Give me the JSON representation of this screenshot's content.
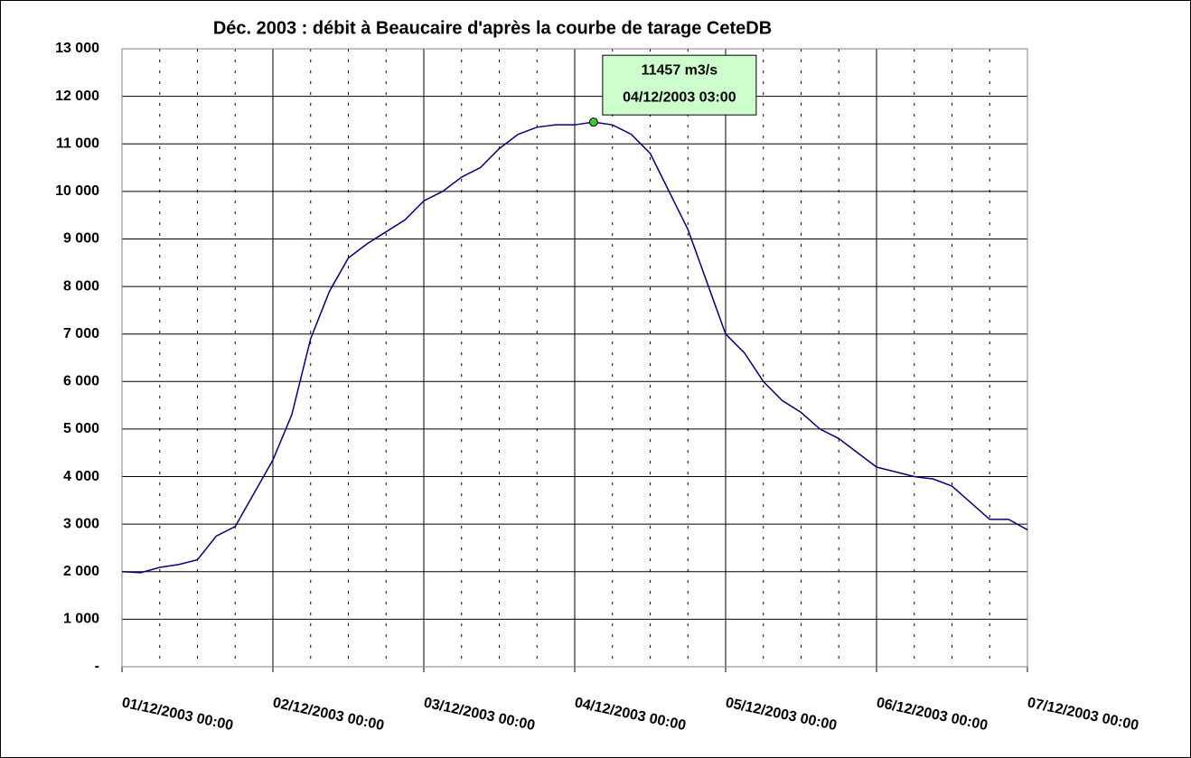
{
  "chart_data": {
    "type": "line",
    "title": "Déc. 2003 : débit à Beaucaire d'après la courbe de tarage CeteDB",
    "x": [
      "01/12/2003 00:00",
      "01/12/2003 03:00",
      "01/12/2003 06:00",
      "01/12/2003 09:00",
      "01/12/2003 12:00",
      "01/12/2003 15:00",
      "01/12/2003 18:00",
      "01/12/2003 21:00",
      "02/12/2003 00:00",
      "02/12/2003 03:00",
      "02/12/2003 06:00",
      "02/12/2003 09:00",
      "02/12/2003 12:00",
      "02/12/2003 15:00",
      "02/12/2003 18:00",
      "02/12/2003 21:00",
      "03/12/2003 00:00",
      "03/12/2003 03:00",
      "03/12/2003 06:00",
      "03/12/2003 09:00",
      "03/12/2003 12:00",
      "03/12/2003 15:00",
      "03/12/2003 18:00",
      "03/12/2003 21:00",
      "04/12/2003 00:00",
      "04/12/2003 03:00",
      "04/12/2003 06:00",
      "04/12/2003 09:00",
      "04/12/2003 12:00",
      "04/12/2003 15:00",
      "04/12/2003 18:00",
      "04/12/2003 21:00",
      "05/12/2003 00:00",
      "05/12/2003 03:00",
      "05/12/2003 06:00",
      "05/12/2003 09:00",
      "05/12/2003 12:00",
      "05/12/2003 15:00",
      "05/12/2003 18:00",
      "05/12/2003 21:00",
      "06/12/2003 00:00",
      "06/12/2003 03:00",
      "06/12/2003 06:00",
      "06/12/2003 09:00",
      "06/12/2003 12:00",
      "06/12/2003 15:00",
      "06/12/2003 18:00",
      "06/12/2003 21:00",
      "07/12/2003 00:00"
    ],
    "series": [
      {
        "name": "débit",
        "color": "#000080",
        "values": [
          2000,
          1980,
          2090,
          2150,
          2250,
          2750,
          2950,
          3650,
          4350,
          5300,
          6900,
          7900,
          8600,
          8900,
          9150,
          9400,
          9800,
          10000,
          10300,
          10500,
          10900,
          11200,
          11350,
          11400,
          11400,
          11457,
          11400,
          11200,
          10800,
          10000,
          9200,
          8100,
          7000,
          6600,
          6000,
          5600,
          5350,
          5000,
          4800,
          4500,
          4200,
          4100,
          4000,
          3950,
          3800,
          3450,
          3100,
          3100,
          2880
        ]
      }
    ],
    "xlim": [
      "01/12/2003 00:00",
      "07/12/2003 00:00"
    ],
    "xticks": [
      "01/12/2003 00:00",
      "02/12/2003 00:00",
      "03/12/2003 00:00",
      "04/12/2003 00:00",
      "05/12/2003 00:00",
      "06/12/2003 00:00",
      "07/12/2003 00:00"
    ],
    "ylim": [
      0,
      13000
    ],
    "yticks": [
      {
        "value": 0,
        "label": "-"
      },
      {
        "value": 1000,
        "label": "1 000"
      },
      {
        "value": 2000,
        "label": "2 000"
      },
      {
        "value": 3000,
        "label": "3 000"
      },
      {
        "value": 4000,
        "label": "4 000"
      },
      {
        "value": 5000,
        "label": "5 000"
      },
      {
        "value": 6000,
        "label": "6 000"
      },
      {
        "value": 7000,
        "label": "7 000"
      },
      {
        "value": 8000,
        "label": "8 000"
      },
      {
        "value": 9000,
        "label": "9 000"
      },
      {
        "value": 10000,
        "label": "10 000"
      },
      {
        "value": 11000,
        "label": "11 000"
      },
      {
        "value": 12000,
        "label": "12 000"
      },
      {
        "value": 13000,
        "label": "13 000"
      }
    ],
    "grid": true,
    "annotation": {
      "lines": [
        "11457 m3/s",
        "04/12/2003 03:00"
      ],
      "x": "04/12/2003 03:00",
      "y": 11457,
      "color": "#ccffcc",
      "marker_color": "#33cc33"
    }
  }
}
